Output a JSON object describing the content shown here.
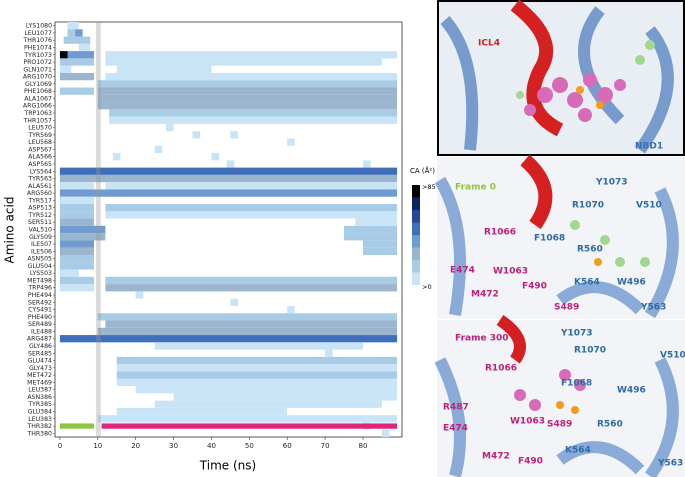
{
  "chart_data": {
    "type": "heatmap",
    "x_label": "Time (ns)",
    "y_label": "Amino acid",
    "colorbar_title": "CA (Å²)",
    "colorbar_top": ">85",
    "colorbar_bottom": ">0",
    "clim": [
      0,
      85
    ],
    "colors": [
      "#c9e4f6",
      "#a8cce6",
      "#9ab5cd",
      "#6f9bd0",
      "#3f6fba",
      "#24489b",
      "#10245e",
      "#000000"
    ],
    "xlim": [
      -1.3,
      90.3
    ],
    "xticks": [
      0,
      10,
      20,
      30,
      40,
      50,
      60,
      70,
      80
    ],
    "categories": [
      "LYS1080",
      "LEU1077",
      "THR1076",
      "PHE1074",
      "TYR1073",
      "PRO1072",
      "GLN1071",
      "ARG1070",
      "GLY1069",
      "PHE1068",
      "ALA1067",
      "ARG1066",
      "TRP1063",
      "THR1057",
      "LEU570",
      "TYR569",
      "LEU568",
      "ASP567",
      "ALA566",
      "ASP565",
      "LYS564",
      "TYR563",
      "ALA561",
      "ARG560",
      "TYR517",
      "ASP513",
      "TYR512",
      "SER511",
      "VAL510",
      "GLY509",
      "ILE507",
      "ILE506",
      "ASN505",
      "GLU504",
      "LYS503",
      "MET498",
      "TRP496",
      "PHE494",
      "SER492",
      "CYS491",
      "PHE490",
      "SER489",
      "ILE488",
      "ARG487",
      "GLY486",
      "SER485",
      "GLU474",
      "GLY473",
      "MET472",
      "MET469",
      "LEU387",
      "ASN386",
      "TYR385",
      "GLU384",
      "LEU383",
      "THR382",
      "THR380"
    ],
    "runs": [
      [
        [
          2,
          5,
          10
        ]
      ],
      [
        [
          2,
          4,
          20
        ],
        [
          4,
          6,
          40
        ]
      ],
      [
        [
          1,
          8,
          15
        ]
      ],
      [
        [
          5,
          8,
          10
        ]
      ],
      [
        [
          0,
          2,
          85
        ],
        [
          2,
          9,
          45
        ],
        [
          12,
          89,
          10
        ]
      ],
      [
        [
          0,
          9,
          15
        ],
        [
          12,
          85,
          8
        ]
      ],
      [
        [
          0,
          3,
          10
        ],
        [
          15,
          40,
          8
        ]
      ],
      [
        [
          0,
          9,
          30
        ],
        [
          12,
          89,
          12
        ]
      ],
      [
        [
          10,
          89,
          20
        ]
      ],
      [
        [
          0,
          9,
          15
        ],
        [
          10,
          89,
          35
        ]
      ],
      [
        [
          10,
          89,
          30
        ]
      ],
      [
        [
          10,
          89,
          35
        ]
      ],
      [
        [
          13,
          89,
          15
        ]
      ],
      [
        [
          13,
          89,
          12
        ]
      ],
      [
        [
          28,
          30,
          8
        ]
      ],
      [
        [
          35,
          37,
          8
        ],
        [
          45,
          47,
          8
        ]
      ],
      [
        [
          60,
          62,
          8
        ]
      ],
      [
        [
          25,
          27,
          8
        ]
      ],
      [
        [
          14,
          16,
          8
        ],
        [
          40,
          42,
          8
        ]
      ],
      [
        [
          44,
          46,
          8
        ],
        [
          80,
          82,
          8
        ]
      ],
      [
        [
          0,
          89,
          55
        ]
      ],
      [
        [
          0,
          89,
          30
        ]
      ],
      [
        [
          0,
          9,
          10
        ],
        [
          12,
          89,
          10
        ]
      ],
      [
        [
          0,
          89,
          40
        ]
      ],
      [
        [
          0,
          9,
          10
        ]
      ],
      [
        [
          0,
          9,
          15
        ],
        [
          12,
          89,
          20
        ]
      ],
      [
        [
          0,
          9,
          20
        ],
        [
          12,
          89,
          10
        ]
      ],
      [
        [
          0,
          9,
          25
        ],
        [
          78,
          89,
          10
        ]
      ],
      [
        [
          0,
          12,
          40
        ],
        [
          75,
          89,
          20
        ]
      ],
      [
        [
          0,
          12,
          35
        ],
        [
          75,
          89,
          15
        ]
      ],
      [
        [
          0,
          9,
          40
        ],
        [
          80,
          89,
          15
        ]
      ],
      [
        [
          0,
          9,
          30
        ],
        [
          80,
          89,
          15
        ]
      ],
      [
        [
          0,
          9,
          20
        ]
      ],
      [
        [
          0,
          9,
          20
        ]
      ],
      [
        [
          0,
          5,
          10
        ]
      ],
      [
        [
          0,
          9,
          15
        ],
        [
          12,
          89,
          20
        ]
      ],
      [
        [
          0,
          9,
          10
        ],
        [
          12,
          89,
          30
        ]
      ],
      [
        [
          20,
          22,
          8
        ]
      ],
      [
        [
          45,
          47,
          8
        ]
      ],
      [
        [
          60,
          62,
          8
        ]
      ],
      [
        [
          10,
          89,
          15
        ]
      ],
      [
        [
          12,
          89,
          35
        ]
      ],
      [
        [
          10,
          89,
          30
        ]
      ],
      [
        [
          0,
          89,
          55
        ]
      ],
      [
        [
          25,
          80,
          10
        ]
      ],
      [
        [
          70,
          72,
          8
        ]
      ],
      [
        [
          15,
          89,
          15
        ]
      ],
      [
        [
          15,
          89,
          10
        ]
      ],
      [
        [
          15,
          89,
          15
        ]
      ],
      [
        [
          15,
          89,
          10
        ]
      ],
      [
        [
          20,
          89,
          10
        ]
      ],
      [
        [
          30,
          89,
          8
        ]
      ],
      [
        [
          25,
          85,
          10
        ]
      ],
      [
        [
          15,
          60,
          8
        ]
      ],
      [
        [
          10,
          89,
          12
        ]
      ],
      [
        [
          80,
          82,
          8
        ]
      ],
      [
        [
          85,
          87,
          8
        ]
      ]
    ],
    "highlight": [
      9.5,
      10.8
    ],
    "phases": [
      {
        "start": 0,
        "end": 9,
        "color": "#8dc63f"
      },
      {
        "start": 11,
        "end": 89,
        "color": "#e0237c"
      }
    ]
  },
  "panels": [
    {
      "labels": [
        "ICL4",
        "NBD1"
      ]
    },
    {
      "labels": [
        "Frame 0",
        "Y1073",
        "R1070",
        "V510",
        "R1066",
        "F1068",
        "R560",
        "E474",
        "W1063",
        "K564",
        "W496",
        "M472",
        "F490",
        "S489",
        "Y563"
      ]
    },
    {
      "labels": [
        "Frame 300",
        "Y1073",
        "R1070",
        "V510",
        "R1066",
        "F1068",
        "W496",
        "R487",
        "W1063",
        "S489",
        "R560",
        "E474",
        "K564",
        "M472",
        "F490",
        "Y563"
      ]
    }
  ]
}
